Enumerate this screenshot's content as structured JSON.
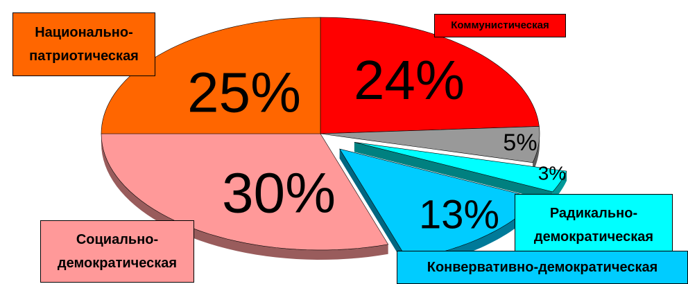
{
  "chart_data": {
    "type": "pie",
    "categories": [
      "Коммунистическая",
      null,
      "Радикально-демократическая",
      "Конвервативно-демократическая",
      "Социально-демократическая",
      "Национально-патриотическая"
    ],
    "values": [
      24,
      5,
      3,
      13,
      30,
      25
    ],
    "value_labels": [
      "24%",
      "5%",
      "3%",
      "13%",
      "30%",
      "25%"
    ],
    "colors": [
      "#ff0000",
      "#999999",
      "#00ffff",
      "#00ccff",
      "#ff9999",
      "#ff6600"
    ]
  }
}
